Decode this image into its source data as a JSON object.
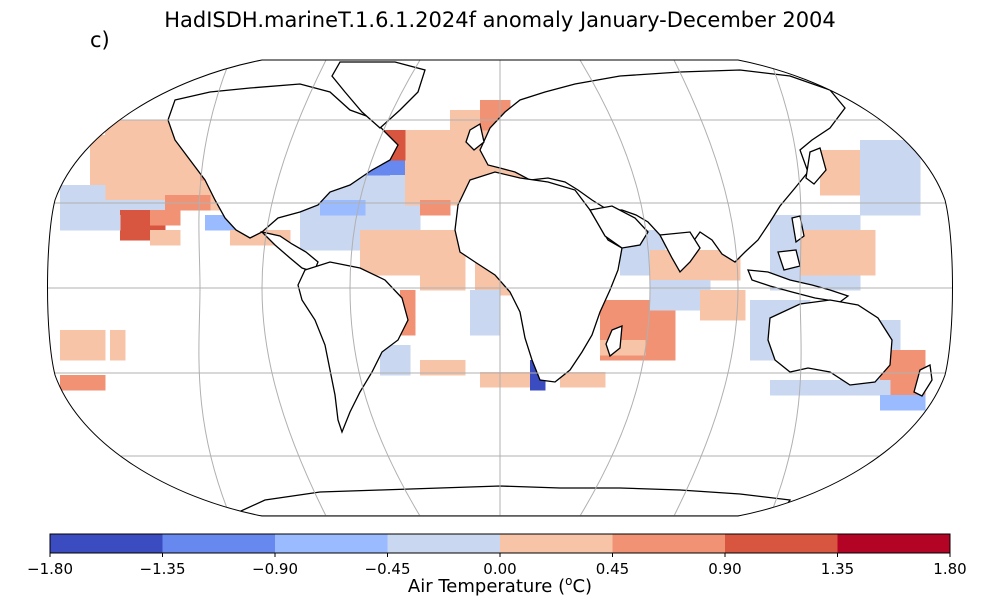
{
  "title": "HadISDH.marineT.1.6.1.2024f anomaly January-December 2004",
  "panel_label": "c)",
  "colorbar": {
    "label_pre": "Air Temperature (",
    "label_sup": "o",
    "label_post": "C)",
    "ticks": [
      "−1.80",
      "−1.35",
      "−0.90",
      "−0.45",
      "0.00",
      "0.45",
      "0.90",
      "1.35",
      "1.80"
    ],
    "colors": [
      "#3b4cc0",
      "#6788ee",
      "#9abbff",
      "#c9d7f0",
      "#f7c4a8",
      "#f29274",
      "#d8553f",
      "#b40426"
    ]
  },
  "map": {
    "projection": "Robinson",
    "ocean_color": "#ffffff",
    "coastline_color": "#000000",
    "gridline_color": "#b0b0b0"
  }
}
